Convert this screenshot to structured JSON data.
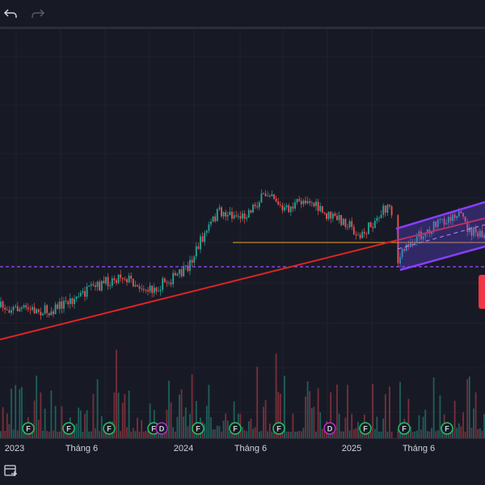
{
  "time_axis": {
    "labels": [
      "2023",
      "Tháng 6",
      "2024",
      "Tháng 6",
      "2025",
      "Tháng 6"
    ]
  },
  "events": [
    "F",
    "F",
    "F",
    "F",
    "D",
    "F",
    "F",
    "F",
    "D",
    "F",
    "F",
    "F"
  ]
}
